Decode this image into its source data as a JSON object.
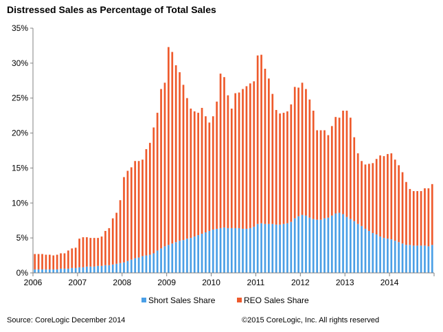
{
  "title": "Distressed Sales as Percentage of Total Sales",
  "footer": {
    "source": "Source: CoreLogic December 2014",
    "copyright": "©2015 CoreLogic, Inc.  All rights reserved"
  },
  "colors": {
    "short": "#4a9fe6",
    "reo": "#ee5a2c",
    "axis": "#808080"
  },
  "chart_data": {
    "type": "bar",
    "stacked": true,
    "x_start": "2006-01",
    "x_end": "2014-12",
    "x_tick_labels": [
      "2006",
      "2007",
      "2008",
      "2009",
      "2010",
      "2011",
      "2012",
      "2013",
      "2014"
    ],
    "y_tick_labels": [
      "0%",
      "5%",
      "10%",
      "15%",
      "20%",
      "25%",
      "30%",
      "35%"
    ],
    "ylim": [
      0,
      35
    ],
    "grid": false,
    "legend_position": "bottom",
    "series": [
      {
        "name": "Short Sales Share",
        "values": [
          0.5,
          0.5,
          0.5,
          0.5,
          0.5,
          0.5,
          0.5,
          0.6,
          0.6,
          0.6,
          0.7,
          0.7,
          0.8,
          0.8,
          0.9,
          0.9,
          0.9,
          1.0,
          1.0,
          1.1,
          1.1,
          1.2,
          1.3,
          1.4,
          1.5,
          1.7,
          1.9,
          2.1,
          2.2,
          2.4,
          2.5,
          2.6,
          2.8,
          3.2,
          3.5,
          3.8,
          4.0,
          4.2,
          4.4,
          4.6,
          4.7,
          4.9,
          5.0,
          5.2,
          5.4,
          5.6,
          5.8,
          6.0,
          6.2,
          6.3,
          6.4,
          6.5,
          6.4,
          6.4,
          6.4,
          6.4,
          6.3,
          6.3,
          6.4,
          6.6,
          7.0,
          7.1,
          7.0,
          7.0,
          7.0,
          6.9,
          6.9,
          7.0,
          7.1,
          7.3,
          7.8,
          8.1,
          8.3,
          8.2,
          7.9,
          7.7,
          7.6,
          7.6,
          7.8,
          7.9,
          8.2,
          8.5,
          8.6,
          8.4,
          8.0,
          7.7,
          7.4,
          7.0,
          6.7,
          6.3,
          6.0,
          5.7,
          5.5,
          5.2,
          5.0,
          4.9,
          4.8,
          4.6,
          4.4,
          4.2,
          4.0,
          4.0,
          3.9,
          3.9,
          3.9,
          3.9,
          3.8,
          4.0
        ],
        "color": "#4a9fe6"
      },
      {
        "name": "REO Sales Share",
        "values": [
          2.2,
          2.2,
          2.2,
          2.1,
          2.1,
          2.0,
          2.1,
          2.2,
          2.2,
          2.6,
          2.8,
          2.9,
          4.1,
          4.3,
          4.2,
          4.1,
          4.1,
          4.0,
          4.2,
          4.9,
          5.3,
          6.6,
          7.3,
          9.0,
          12.2,
          12.9,
          13.2,
          13.9,
          13.8,
          13.8,
          15.2,
          16.0,
          18.0,
          19.7,
          22.8,
          23.4,
          28.3,
          27.4,
          25.3,
          24.1,
          22.2,
          20.1,
          18.5,
          17.9,
          17.5,
          18.0,
          16.6,
          15.5,
          16.2,
          18.2,
          22.1,
          21.5,
          19.0,
          17.1,
          19.3,
          19.4,
          20.0,
          20.4,
          20.7,
          20.8,
          24.1,
          24.1,
          22.2,
          20.8,
          18.6,
          16.4,
          15.9,
          15.9,
          16.0,
          16.8,
          18.8,
          18.4,
          18.9,
          18.1,
          16.9,
          15.5,
          12.8,
          12.8,
          12.6,
          11.8,
          12.8,
          13.8,
          13.6,
          14.8,
          15.2,
          14.5,
          12.0,
          10.1,
          9.3,
          9.2,
          9.6,
          10.0,
          10.8,
          11.6,
          11.7,
          12.1,
          12.3,
          11.6,
          11.0,
          10.2,
          9.0,
          8.0,
          7.8,
          7.8,
          7.8,
          8.2,
          8.3,
          8.7
        ],
        "color": "#ee5a2c"
      }
    ]
  }
}
